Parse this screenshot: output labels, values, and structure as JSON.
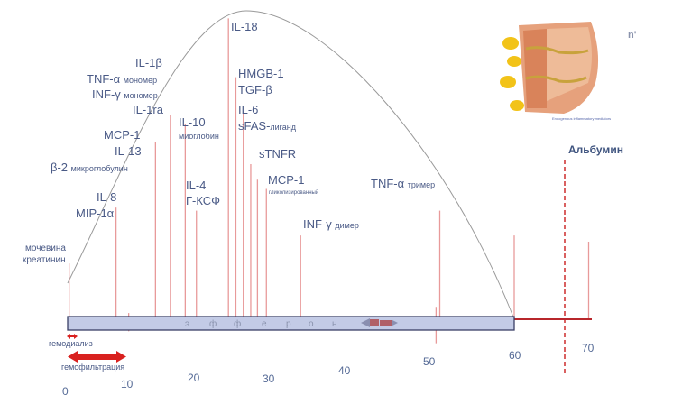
{
  "axis": {
    "ticks": [
      {
        "label": "0",
        "value": 0
      },
      {
        "label": "10",
        "value": 10
      },
      {
        "label": "20",
        "value": 20
      },
      {
        "label": "30",
        "value": 30
      },
      {
        "label": "40",
        "value": 40
      },
      {
        "label": "50",
        "value": 50
      },
      {
        "label": "60",
        "value": 60
      },
      {
        "label": "70",
        "value": 70
      }
    ],
    "max_value": 70
  },
  "curve": {
    "start": 0,
    "peak": 24,
    "end": 60
  },
  "markers": [
    {
      "id": "urea",
      "value": 0.2,
      "level": 0.18
    },
    {
      "id": "b2m",
      "value": 11.8,
      "level": 0.57
    },
    {
      "id": "il8",
      "value": 6.5,
      "level": 0.36
    },
    {
      "id": "short1",
      "value": 8.2,
      "level": 0.02
    },
    {
      "id": "il1",
      "value": 13.8,
      "level": 0.66
    },
    {
      "id": "il10",
      "value": 15.8,
      "level": 0.63
    },
    {
      "id": "il4",
      "value": 17.3,
      "level": 0.35
    },
    {
      "id": "il18",
      "value": 21.6,
      "level": 0.97
    },
    {
      "id": "hmgb1",
      "value": 22.6,
      "level": 0.78
    },
    {
      "id": "il6",
      "value": 23.6,
      "level": 0.67
    },
    {
      "id": "tnfr1",
      "value": 24.6,
      "level": 0.5
    },
    {
      "id": "tnfr2",
      "value": 25.5,
      "level": 0.45
    },
    {
      "id": "mcp1g",
      "value": 26.7,
      "level": 0.42
    },
    {
      "id": "infd",
      "value": 31.3,
      "level": 0.27
    },
    {
      "id": "m40",
      "value": 38.6,
      "level": 0.01
    },
    {
      "id": "m50",
      "value": 49.5,
      "level": 0.04
    },
    {
      "id": "tnft",
      "value": 50.0,
      "level": 0.35
    },
    {
      "id": "m60",
      "value": 60.0,
      "level": 0.27
    },
    {
      "id": "m70",
      "value": 70.0,
      "level": 0.25
    }
  ],
  "labels": {
    "urea": "мочевина",
    "creatinine": "креатинин",
    "il8": "IL-8",
    "mip1a": "MIP-1α",
    "b2m": "β-2",
    "b2m_sub": "микроглобулин",
    "mcp1": "MCP-1",
    "il13": "IL-13",
    "il1b": "IL-1β",
    "tnfa": "TNF-α",
    "tnfa_sub": "мономер",
    "infg": "INF-γ",
    "infg_sub": "мономер",
    "il1ra": "IL-1ra",
    "il10": "IL-10",
    "il10_sub": "миоглобин",
    "il4": "IL-4",
    "gcsf": "Г-КСФ",
    "il18": "IL-18",
    "hmgb1": "HMGB-1",
    "tgfb": "TGF-β",
    "il6": "IL-6",
    "sfas": "sFAS-",
    "sfas_sub": "лиганд",
    "stnfr": "sTNFR",
    "mcp1g": "MCP-1",
    "mcp1g_sub": "гликолизированный",
    "infd": "INF-γ",
    "infd_sub": "димер",
    "tnft": "TNF-α",
    "tnft_sub": "тример",
    "albumin": "Альбумин"
  },
  "track": {
    "letters": [
      "э",
      "ф",
      "ф",
      "е",
      "р",
      "о",
      "н"
    ]
  },
  "methods": {
    "hemodialysis": "гемодиализ",
    "hemofiltration": "гемофильтрация"
  },
  "inset": {
    "logo_fragment": "n'",
    "caption": "Endogenous inflammatory mediators"
  },
  "colors": {
    "marker": "#e89a9a",
    "albumin_line": "#d03a3a",
    "track_fill": "#c3cbe6",
    "track_border": "#3a3f66",
    "axis_line": "#b8262b",
    "arrow": "#d9211f",
    "curve": "#999999",
    "label": "#4a5a86"
  }
}
